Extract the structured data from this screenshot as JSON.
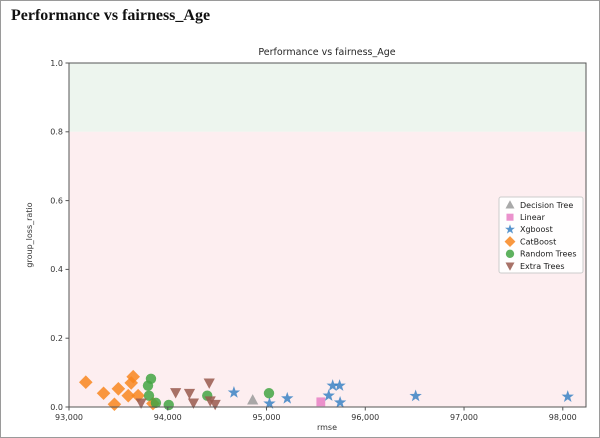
{
  "page": {
    "heading": "Performance vs fairness_Age"
  },
  "chart_data": {
    "type": "scatter",
    "title": "Performance vs fairness_Age",
    "xlabel": "rmse",
    "ylabel": "group_loss_ratio",
    "xlim": [
      93000,
      98235
    ],
    "ylim": [
      0,
      1
    ],
    "grid": false,
    "legend_position": "right",
    "x_ticks": {
      "values": [
        93000,
        94000,
        95000,
        96000,
        97000,
        98000
      ],
      "labels": [
        "93,000",
        "94,000",
        "95,000",
        "96,000",
        "97,000",
        "98,000"
      ]
    },
    "y_ticks": {
      "values": [
        0.0,
        0.2,
        0.4,
        0.6,
        0.8,
        1.0
      ],
      "labels": [
        "0.0",
        "0.2",
        "0.4",
        "0.6",
        "0.8",
        "1.0"
      ]
    },
    "zones": [
      {
        "name": "upper-zone",
        "y_from": 0.8,
        "y_to": 1.0,
        "color": "#edf5ee"
      },
      {
        "name": "lower-zone",
        "y_from": 0.0,
        "y_to": 0.8,
        "color": "#fdeef0"
      }
    ],
    "series": [
      {
        "name": "Decision Tree",
        "marker": "triangle-up",
        "color": "#9a9a9a",
        "points": [
          [
            94860,
            0.02
          ]
        ]
      },
      {
        "name": "Linear",
        "marker": "square",
        "color": "#e77fc4",
        "points": [
          [
            95550,
            0.015
          ]
        ]
      },
      {
        "name": "Xgboost",
        "marker": "star",
        "color": "#3b82c4",
        "points": [
          [
            94670,
            0.042
          ],
          [
            95030,
            0.01
          ],
          [
            95210,
            0.025
          ],
          [
            95630,
            0.033
          ],
          [
            95670,
            0.062
          ],
          [
            95740,
            0.062
          ],
          [
            95745,
            0.013
          ],
          [
            96510,
            0.032
          ],
          [
            98050,
            0.03
          ]
        ]
      },
      {
        "name": "CatBoost",
        "marker": "diamond",
        "color": "#f8861e",
        "points": [
          [
            93170,
            0.072
          ],
          [
            93350,
            0.04
          ],
          [
            93460,
            0.008
          ],
          [
            93500,
            0.053
          ],
          [
            93600,
            0.033
          ],
          [
            93630,
            0.07
          ],
          [
            93650,
            0.088
          ],
          [
            93700,
            0.033
          ],
          [
            93850,
            0.01
          ]
        ]
      },
      {
        "name": "Random Trees",
        "marker": "circle",
        "color": "#43a543",
        "points": [
          [
            93800,
            0.062
          ],
          [
            93830,
            0.082
          ],
          [
            93810,
            0.033
          ],
          [
            93880,
            0.012
          ],
          [
            94010,
            0.006
          ],
          [
            94400,
            0.033
          ],
          [
            95025,
            0.04
          ]
        ]
      },
      {
        "name": "Extra Trees",
        "marker": "triangle-down",
        "color": "#99594d",
        "points": [
          [
            93730,
            0.012
          ],
          [
            94080,
            0.042
          ],
          [
            94220,
            0.04
          ],
          [
            94260,
            0.012
          ],
          [
            94420,
            0.07
          ],
          [
            94430,
            0.018
          ],
          [
            94480,
            0.008
          ]
        ]
      }
    ]
  }
}
